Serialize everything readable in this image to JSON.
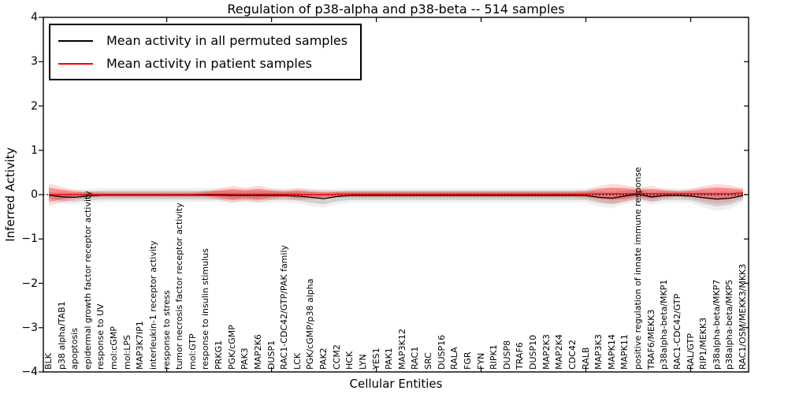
{
  "title": "Regulation of p38-alpha and p38-beta -- 514 samples",
  "axes": {
    "x_label": "Cellular Entities",
    "y_label": "Inferred Activity"
  },
  "legend": {
    "entries": [
      {
        "label": "Mean activity in all permuted samples",
        "color": "#000000"
      },
      {
        "label": "Mean activity in patient samples",
        "color": "#ff0000"
      }
    ]
  },
  "chart_data": {
    "type": "line",
    "title": "Regulation of p38-alpha and p38-beta -- 514 samples",
    "xlabel": "Cellular Entities",
    "ylabel": "Inferred Activity",
    "ylim": [
      -4,
      4
    ],
    "grid": false,
    "legend_position": "upper left",
    "zero_line": {
      "style": "dotted",
      "color": "#000000",
      "y": 0
    },
    "y_ticks": [
      {
        "v": 4,
        "label": "4"
      },
      {
        "v": 3,
        "label": "3"
      },
      {
        "v": 2,
        "label": "2"
      },
      {
        "v": 1,
        "label": "1"
      },
      {
        "v": 0,
        "label": "0"
      },
      {
        "v": -1,
        "label": "−1"
      },
      {
        "v": -2,
        "label": "−2"
      },
      {
        "v": -3,
        "label": "−3"
      },
      {
        "v": -4,
        "label": "−4"
      }
    ],
    "x_major_tick_indices": [
      9,
      17,
      25,
      33,
      41,
      49
    ],
    "categories": [
      "BLK",
      "p38 alpha/TAB1",
      "apoptosis",
      "epidermal growth factor receptor activity",
      "response to UV",
      "mol:cGMP",
      "mol:LPS",
      "MAP3K7IP1",
      "interleukin-1 receptor activity",
      "response to stress",
      "tumor necrosis factor receptor activity",
      "mol:GTP",
      "response to insulin stimulus",
      "PRKG1",
      "PGK/cGMP",
      "PAK3",
      "MAP2K6",
      "DUSP1",
      "RAC1-CDC42/GTP/PAK family",
      "LCK",
      "PGK/cGMP/p38 alpha",
      "PAK2",
      "CCM2",
      "HCK",
      "LYN",
      "YES1",
      "PAK1",
      "MAP3K12",
      "RAC1",
      "SRC",
      "DUSP16",
      "RALA",
      "FGR",
      "FYN",
      "RIPK1",
      "DUSP8",
      "TRAF6",
      "DUSP10",
      "MAP2K3",
      "MAP2K4",
      "CDC42",
      "RALB",
      "MAP3K3",
      "MAPK14",
      "MAPK11",
      "positive regulation of innate immune response",
      "TRAF6/MEKK3",
      "p38alpha-beta/MKP1",
      "RAC1-CDC42/GTP",
      "RAL/GTP",
      "RIP1/MEKK3",
      "p38alpha-beta/MKP7",
      "p38alpha-beta/MKP5",
      "RAC1/OSM/MEKK3/MKK3"
    ],
    "series": [
      {
        "name": "Mean activity in all permuted samples",
        "color": "#000000",
        "band_color": "#000000",
        "values": [
          -0.01,
          -0.05,
          -0.06,
          -0.03,
          -0.01,
          -0.01,
          -0.01,
          -0.01,
          -0.01,
          -0.01,
          -0.01,
          -0.01,
          -0.01,
          -0.01,
          -0.02,
          -0.02,
          -0.02,
          -0.02,
          -0.02,
          -0.03,
          -0.06,
          -0.09,
          -0.04,
          -0.02,
          -0.02,
          -0.02,
          -0.02,
          -0.02,
          -0.02,
          -0.02,
          -0.02,
          -0.02,
          -0.02,
          -0.02,
          -0.02,
          -0.02,
          -0.02,
          -0.02,
          -0.02,
          -0.02,
          -0.02,
          -0.02,
          -0.06,
          -0.08,
          -0.03,
          0.01,
          -0.05,
          -0.02,
          -0.02,
          -0.03,
          -0.07,
          -0.1,
          -0.08,
          -0.02
        ],
        "band_halfwidth": [
          0.06,
          0.1,
          0.1,
          0.1,
          0.1,
          0.1,
          0.1,
          0.1,
          0.1,
          0.1,
          0.1,
          0.1,
          0.1,
          0.1,
          0.1,
          0.1,
          0.1,
          0.1,
          0.1,
          0.1,
          0.12,
          0.13,
          0.11,
          0.1,
          0.1,
          0.1,
          0.1,
          0.1,
          0.1,
          0.1,
          0.1,
          0.1,
          0.1,
          0.1,
          0.1,
          0.1,
          0.1,
          0.1,
          0.1,
          0.1,
          0.1,
          0.1,
          0.13,
          0.14,
          0.12,
          0.1,
          0.11,
          0.1,
          0.1,
          0.1,
          0.14,
          0.17,
          0.15,
          0.1
        ]
      },
      {
        "name": "Mean activity in patient samples",
        "color": "#ff0000",
        "band_color": "#ff0000",
        "values": [
          0,
          0,
          0,
          0,
          0,
          0,
          0,
          0,
          0,
          0,
          0,
          0,
          0.01,
          0.01,
          0.01,
          0.01,
          0.01,
          0.01,
          0.01,
          0.01,
          0,
          0,
          0.01,
          0.01,
          0.01,
          0.01,
          0.01,
          0.01,
          0.01,
          0.01,
          0.01,
          0.01,
          0.01,
          0.01,
          0.01,
          0.01,
          0.01,
          0.01,
          0.01,
          0.01,
          0.01,
          0.01,
          0.02,
          0.02,
          0.02,
          0.03,
          0.02,
          0.02,
          0.02,
          0.02,
          0.02,
          0.02,
          0.02,
          0.04
        ],
        "band_halfwidth": [
          0.16,
          0.11,
          0.07,
          0.05,
          0.04,
          0.04,
          0.04,
          0.04,
          0.04,
          0.04,
          0.04,
          0.04,
          0.05,
          0.08,
          0.12,
          0.09,
          0.12,
          0.08,
          0.06,
          0.09,
          0.07,
          0.06,
          0.05,
          0.05,
          0.05,
          0.05,
          0.05,
          0.05,
          0.05,
          0.05,
          0.05,
          0.05,
          0.05,
          0.05,
          0.05,
          0.05,
          0.05,
          0.05,
          0.05,
          0.05,
          0.05,
          0.06,
          0.11,
          0.14,
          0.12,
          0.08,
          0.11,
          0.07,
          0.05,
          0.07,
          0.11,
          0.14,
          0.12,
          0.07
        ]
      }
    ]
  }
}
